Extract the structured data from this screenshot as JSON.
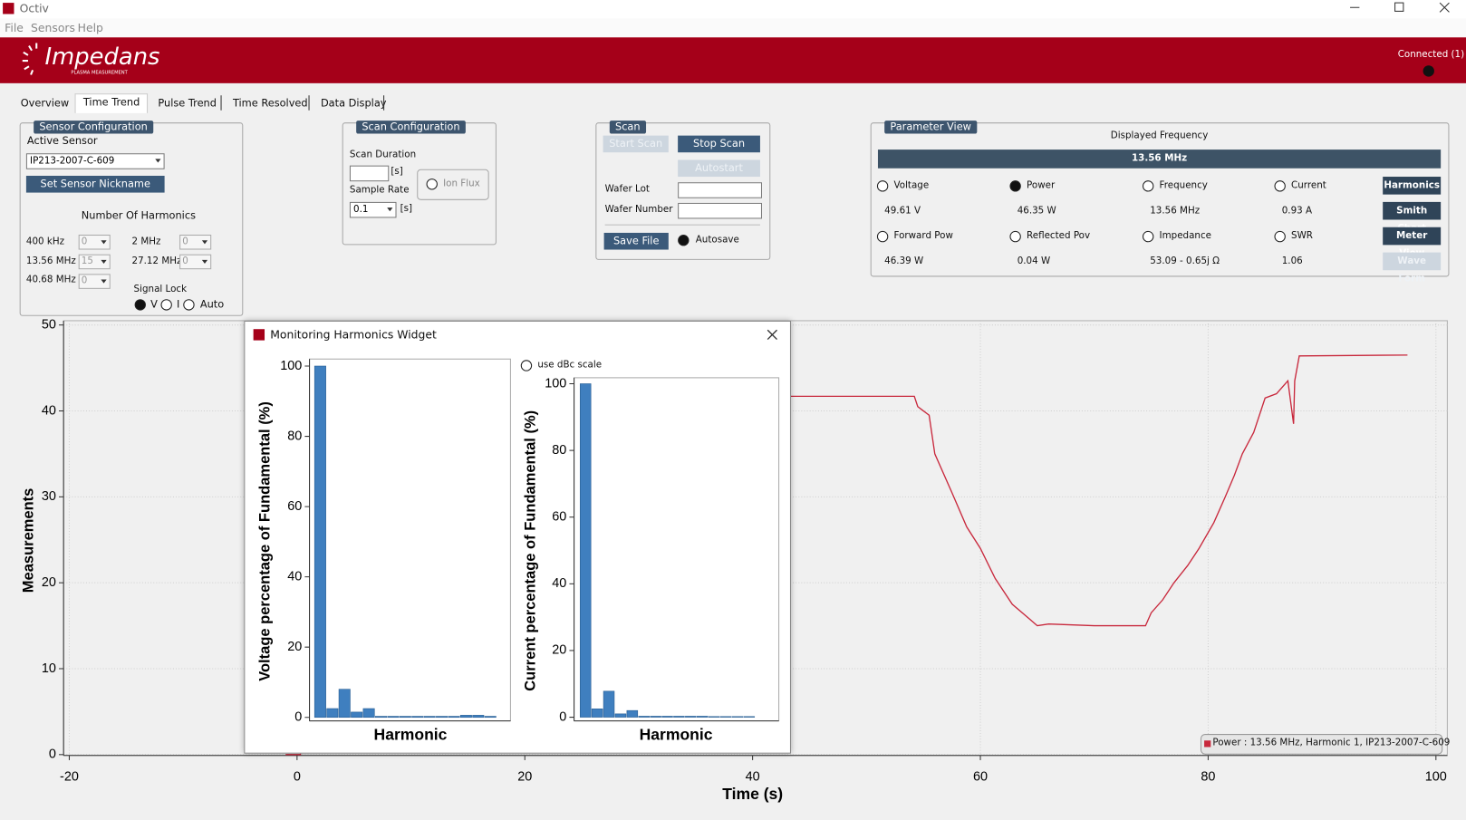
{
  "window": {
    "title": "Octiv",
    "menu": [
      "File",
      "Sensors",
      "Help"
    ]
  },
  "header": {
    "logo": "Impedans",
    "logo_sub": "PLASMA MEASUREMENT",
    "status": "Connected (1)"
  },
  "tabs": [
    "Overview",
    "Time Trend",
    "Pulse Trend",
    "Time Resolved",
    "Data Display"
  ],
  "sensor_config": {
    "title": "Sensor Configuration",
    "active_sensor_label": "Active Sensor",
    "sensor": "IP213-2007-C-609",
    "button": "Set Sensor Nickname",
    "harmonics_label": "Number Of Harmonics",
    "harmonics": [
      {
        "label": "400 kHz",
        "value": "0"
      },
      {
        "label": "2 MHz",
        "value": "0"
      },
      {
        "label": "13.56 MHz",
        "value": "15"
      },
      {
        "label": "27.12 MHz",
        "value": "0"
      },
      {
        "label": "40.68 MHz",
        "value": "0"
      }
    ],
    "signal_lock_label": "Signal Lock",
    "signal_lock": [
      {
        "label": "V",
        "selected": true
      },
      {
        "label": "I",
        "selected": false
      },
      {
        "label": "Auto",
        "selected": false
      }
    ]
  },
  "scan_config": {
    "title": "Scan Configuration",
    "duration_label": "Scan Duration",
    "unit": "[s]",
    "sample_rate_label": "Sample Rate",
    "sample_rate": "0.1",
    "ion_flux": {
      "label": "Ion Flux",
      "checked": false
    }
  },
  "scan": {
    "title": "Scan",
    "start": {
      "label": "Start Scan",
      "enabled": false
    },
    "stop": {
      "label": "Stop Scan",
      "enabled": true
    },
    "autostart": {
      "label": "Autostart",
      "enabled": false
    },
    "wafer_lot": "Wafer Lot",
    "wafer_number": "Wafer Number",
    "save": {
      "label": "Save File",
      "enabled": true
    },
    "autosave": {
      "label": "Autosave",
      "checked": true
    }
  },
  "parameter_view": {
    "title": "Parameter View",
    "displayed_frequency_label": "Displayed Frequency",
    "frequency": "13.56 MHz",
    "params": [
      {
        "name": "Voltage",
        "value": "49.61 V",
        "selected": false
      },
      {
        "name": "Power",
        "value": "46.35 W",
        "selected": true
      },
      {
        "name": "Frequency",
        "value": "13.56 MHz",
        "selected": false
      },
      {
        "name": "Current",
        "value": "0.93 A",
        "selected": false
      },
      {
        "name": "Forward Pow",
        "value": "46.39 W",
        "selected": false
      },
      {
        "name": "Reflected Pov",
        "value": "0.04 W",
        "selected": false
      },
      {
        "name": "Impedance",
        "value": "53.09 - 0.65j Ω",
        "selected": false
      },
      {
        "name": "SWR",
        "value": "1.06",
        "selected": false
      }
    ],
    "buttons": [
      {
        "label": "Harmonics",
        "enabled": true
      },
      {
        "label": "Smith Chart",
        "enabled": true
      },
      {
        "label": "Meter View",
        "enabled": true
      },
      {
        "label": "Wave Form",
        "enabled": false
      }
    ]
  },
  "harmonics_widget": {
    "title": "Monitoring Harmonics Widget",
    "dbc": {
      "label": "use dBc scale",
      "checked": false
    }
  },
  "chart_data": [
    {
      "type": "line",
      "xlabel": "Time (s)",
      "ylabel": "Measurements",
      "xlim": [
        -20.5,
        101
      ],
      "ylim": [
        -0.1,
        50.5
      ],
      "xticks": [
        -20,
        0,
        20,
        40,
        60,
        80,
        100
      ],
      "yticks": [
        0,
        10,
        20,
        30,
        40,
        50
      ],
      "grid": true,
      "legend": "bottom-right",
      "series": [
        {
          "name": "Power : 13.56 MHz, Harmonic 1, IP213-2007-C-609",
          "color": "#c8283c",
          "x": [
            -1,
            0.3,
            1,
            43.3,
            54.2,
            54.5,
            55.5,
            56,
            57.5,
            58.8,
            60,
            61.3,
            62.8,
            64.3,
            65,
            66,
            70,
            74.5,
            75,
            76,
            77,
            78.2,
            79.2,
            80.5,
            81.5,
            82.3,
            83,
            84,
            85,
            86,
            87,
            87.5,
            87.6,
            88,
            97.5
          ],
          "values": [
            0,
            0,
            41.7,
            41.7,
            41.7,
            40.5,
            39.5,
            35,
            30.5,
            26.5,
            24,
            20.5,
            17.5,
            15.8,
            15,
            15.2,
            15,
            15,
            16.5,
            18,
            20,
            22,
            24,
            27,
            30,
            32.5,
            35,
            37.5,
            41.5,
            42,
            43.5,
            38.5,
            43.5,
            46.4,
            46.5
          ]
        }
      ]
    },
    {
      "type": "bar",
      "xlabel": "Harmonic",
      "ylabel": "Voltage percentage of Fundamental (%)",
      "ylim": [
        -1,
        102
      ],
      "yticks": [
        0,
        20,
        40,
        60,
        80,
        100
      ],
      "color": "#3f7fbf",
      "categories": [
        null,
        null,
        null,
        null,
        null,
        null,
        null,
        null,
        null,
        null,
        null,
        null,
        null,
        null,
        null
      ],
      "values": [
        100,
        2.5,
        8,
        1.5,
        2.5,
        0.3,
        0.3,
        0.3,
        0.3,
        0.3,
        0.3,
        0.3,
        0.6,
        0.6,
        0.3
      ]
    },
    {
      "type": "bar",
      "xlabel": "Harmonic",
      "ylabel": "Current percentage of Fundamental (%)",
      "ylim": [
        -1.1,
        101.8
      ],
      "yticks": [
        0,
        20,
        40,
        60,
        80,
        100
      ],
      "color": "#3f7fbf",
      "categories": [
        null,
        null,
        null,
        null,
        null,
        null,
        null,
        null,
        null,
        null,
        null,
        null,
        null,
        null,
        null
      ],
      "values": [
        100,
        2.5,
        7.8,
        1,
        2,
        0.3,
        0.3,
        0.3,
        0.3,
        0.3,
        0.3,
        0.2,
        0.2,
        0.2,
        0.2
      ]
    }
  ]
}
